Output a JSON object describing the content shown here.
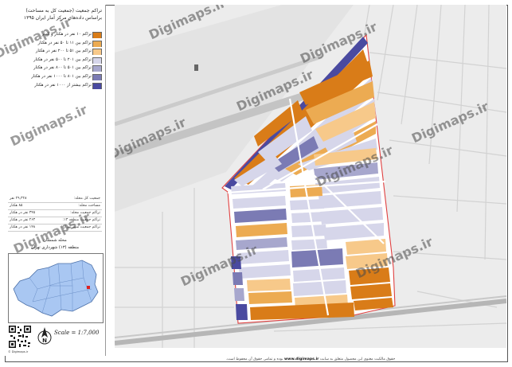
{
  "title": {
    "line1": "تراکم جمعیت (جمعیت کل به مساحت)",
    "line2": "براساس داده‌های مرکز آمار ایران ۱۳۹۵"
  },
  "legend": [
    {
      "label": "تراکم ۱۰ نفر در هکتار و کمتر",
      "color": "#d97c18"
    },
    {
      "label": "تراکم بین ۱۱ تا ۵۰ نفر در هکتار",
      "color": "#ecab52"
    },
    {
      "label": "تراکم بین ۵۱ تا ۲۰۰ نفر در هکتار",
      "color": "#f7c98a"
    },
    {
      "label": "تراکم بین ۲۰۱ تا ۵۰۰ نفر در هکتار",
      "color": "#d6d6ea"
    },
    {
      "label": "تراکم بین ۵۰۱ تا ۸۰۰ نفر در هکتار",
      "color": "#a7a7cd"
    },
    {
      "label": "تراکم بین ۸۰۱ تا ۱۰۰۰ نفر در هکتار",
      "color": "#7b7bb4"
    },
    {
      "label": "تراکم بیشتر از ۱۰۰۰ نفر در هکتار",
      "color": "#4a4aa0"
    }
  ],
  "stats": [
    {
      "label": "جمعیت کل محله:",
      "value": "۲۹,۳۲۸ نفر"
    },
    {
      "label": "مساحت محله:",
      "value": "۸۵ هکتار"
    },
    {
      "label": "تراکم جمعیت محله:",
      "value": "۳۴۵ نفر در هکتار"
    },
    {
      "label": "تراکم جمعیت منطقه ۱۳:",
      "value": "۲۶۳ نفر در هکتار"
    },
    {
      "label": "تراکم جمعیت شهر تهران:",
      "value": "۱۴۸ نفر در هکتار"
    }
  ],
  "location": {
    "line1": "محله شمشان",
    "line2": "منطقه (۱۳) شهرداری تهران"
  },
  "scale_label": "Scale = 1:7,000",
  "north_label": "N",
  "qr_caption": "© Digimaps.ir",
  "watermark": "Digimaps.ir",
  "footer": {
    "text_before": "حقوق مالکیت معنوی این محصول متعلق به سایت",
    "site": "www.digimaps.ir",
    "text_after": "بوده و تمامی حقوق آن محفوظ است."
  },
  "colors": {
    "c1": "#d97c18",
    "c2": "#ecab52",
    "c3": "#f7c98a",
    "c4": "#d6d6ea",
    "c5": "#a7a7cd",
    "c6": "#7b7bb4",
    "c7": "#4a4aa0"
  }
}
